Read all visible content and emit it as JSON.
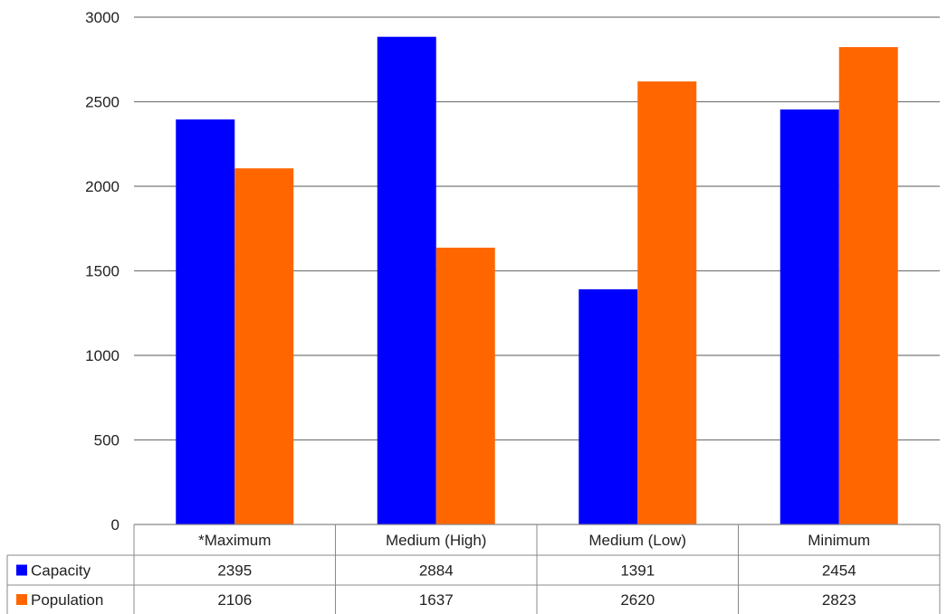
{
  "chart_data": {
    "type": "bar",
    "categories": [
      "*Maximum",
      "Medium (High)",
      "Medium (Low)",
      "Minimum"
    ],
    "series": [
      {
        "name": "Capacity",
        "color": "#0000ff",
        "values": [
          2395,
          2884,
          1391,
          2454
        ]
      },
      {
        "name": "Population",
        "color": "#ff6600",
        "values": [
          2106,
          1637,
          2620,
          2823
        ]
      }
    ],
    "ylim": [
      0,
      3000
    ],
    "yticks": [
      0,
      500,
      1000,
      1500,
      2000,
      2500,
      3000
    ],
    "grid": true,
    "legend": "data-table-left",
    "table_values": {
      "Capacity": [
        "2395",
        "2884",
        "1391",
        "2454"
      ],
      "Population": [
        "2106",
        "1637",
        "2620",
        "2823"
      ]
    }
  }
}
